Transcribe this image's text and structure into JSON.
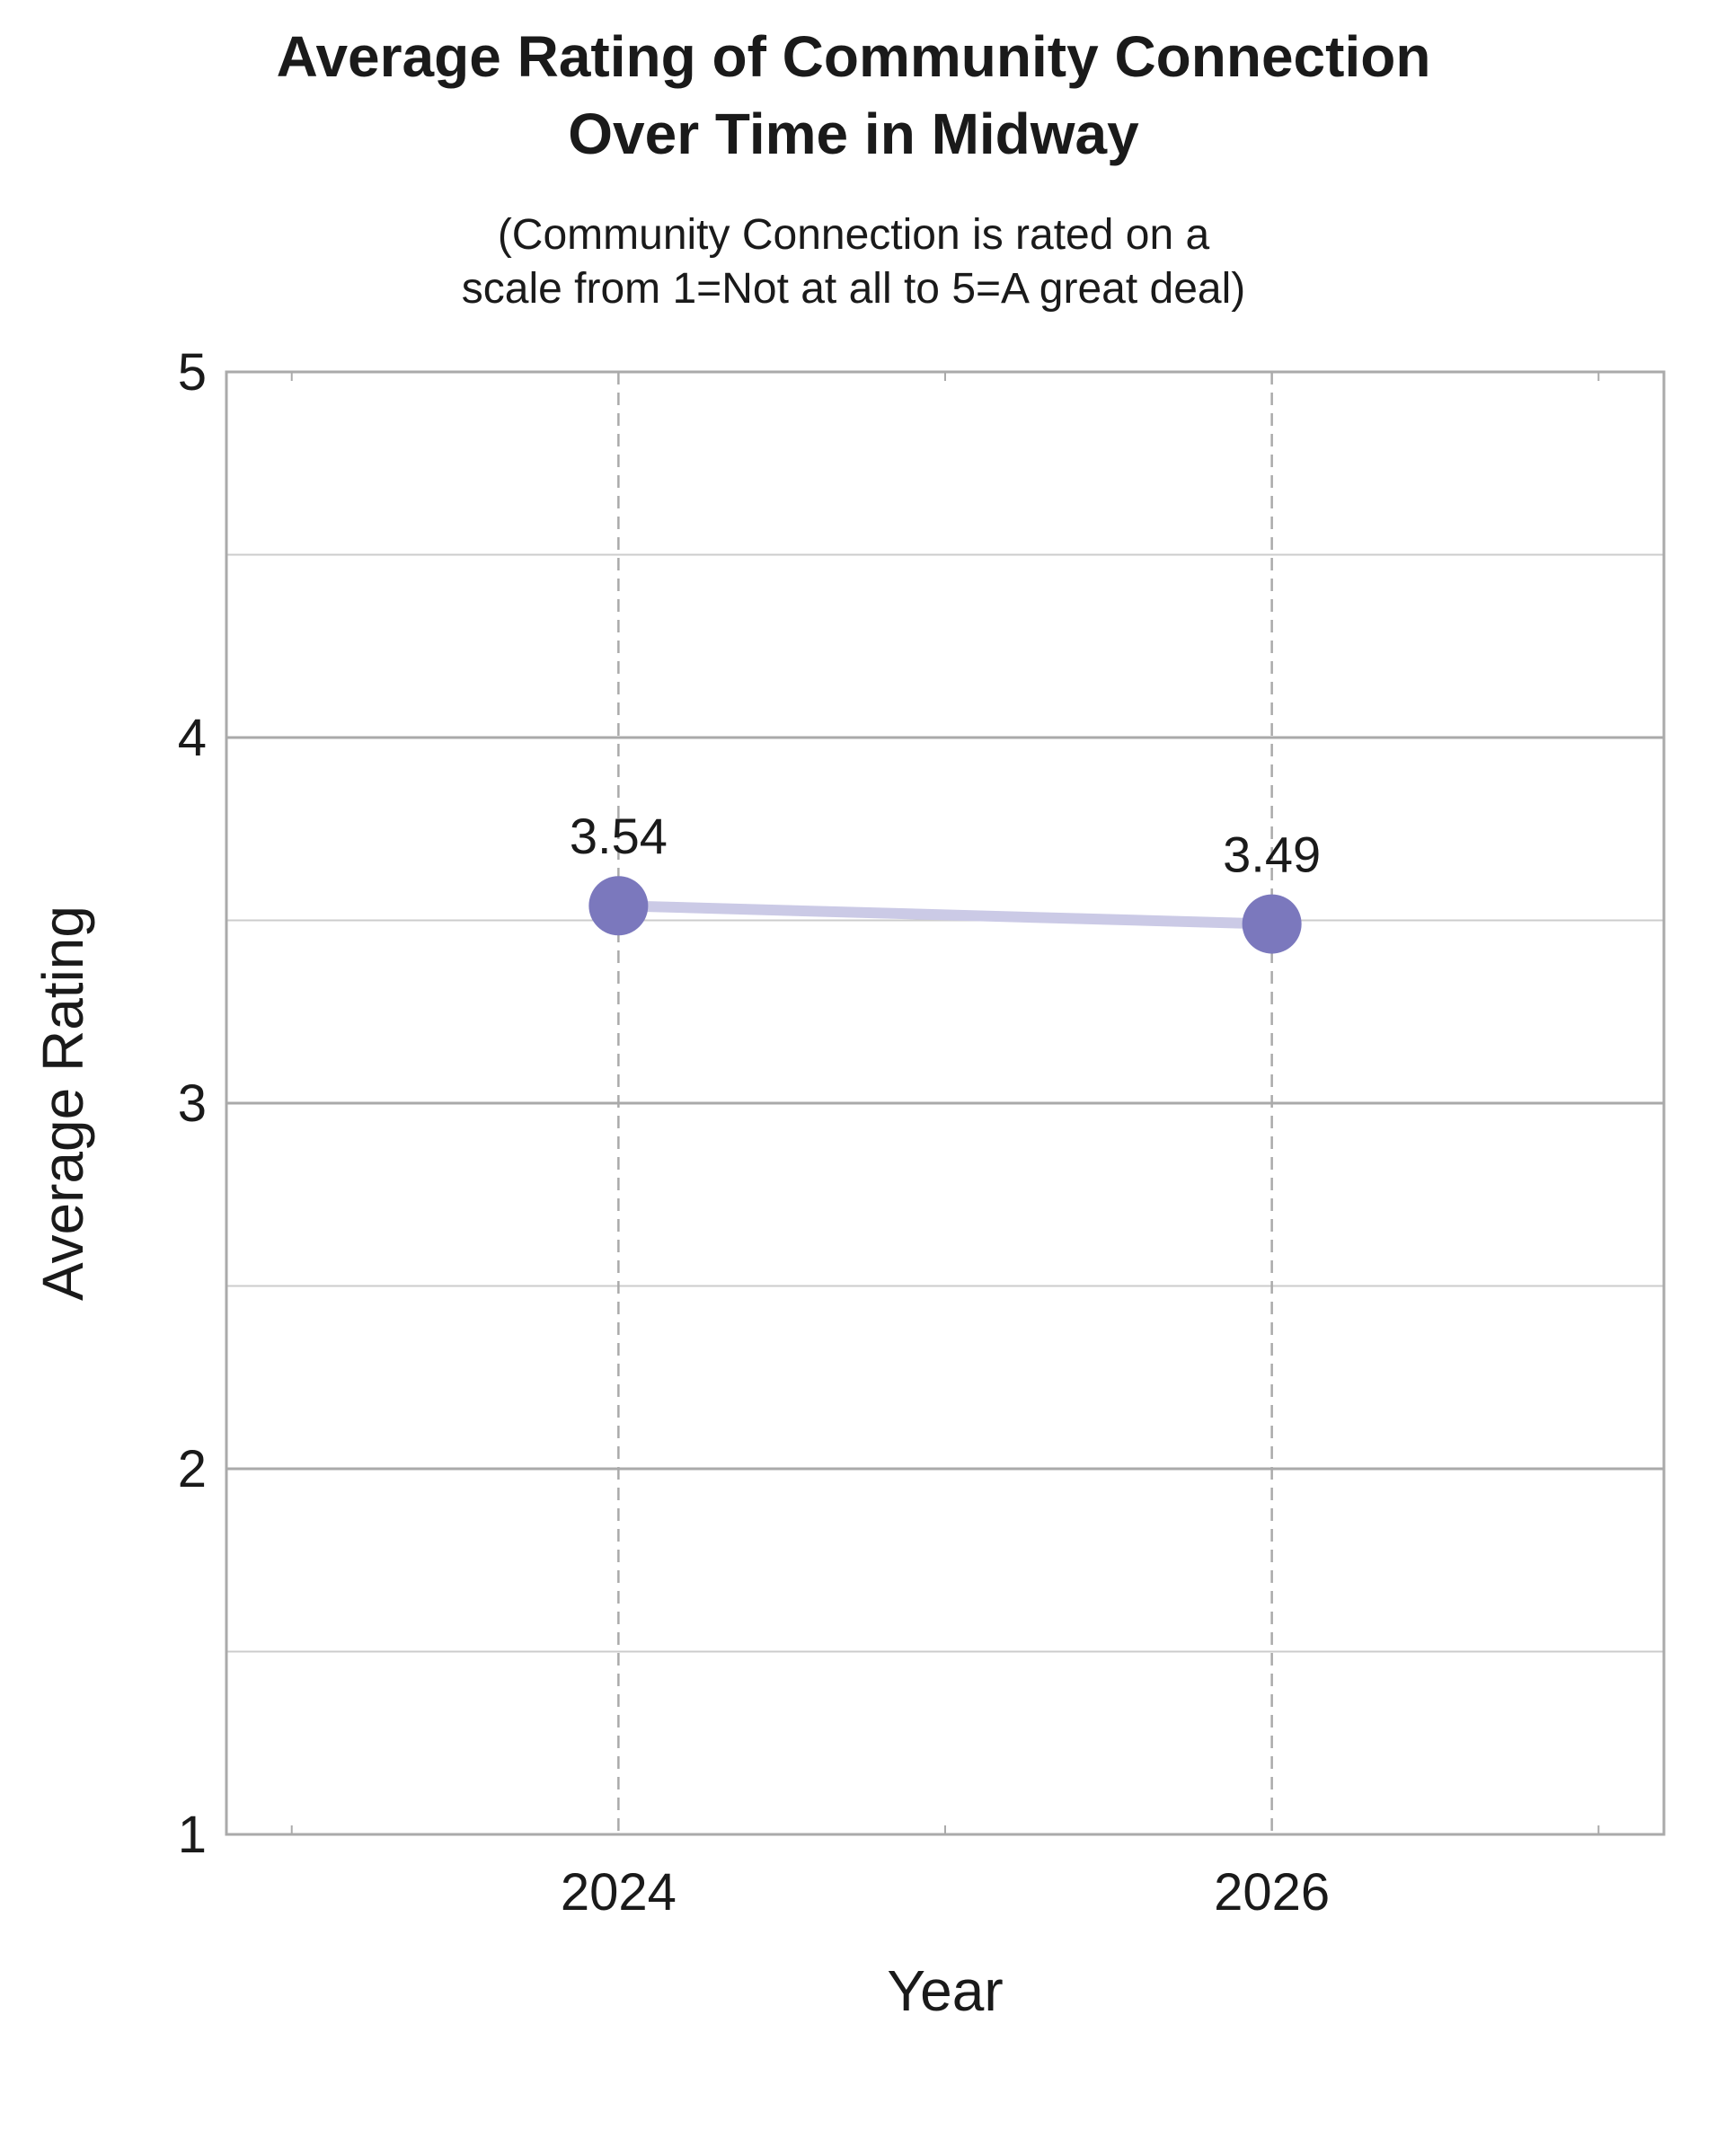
{
  "chart_data": {
    "type": "line",
    "title_lines": [
      "Average Rating of Community Connection",
      "Over Time in Midway"
    ],
    "subtitle_lines": [
      "(Community Connection is rated on a",
      "scale from 1=Not at all to 5=A great deal)"
    ],
    "xlabel": "Year",
    "ylabel": "Average Rating",
    "x": [
      2024,
      2026
    ],
    "x_tick_labels": [
      "2024",
      "2026"
    ],
    "xlim": [
      2022.8,
      2027.2
    ],
    "ylim": [
      1,
      5
    ],
    "y_ticks": [
      1,
      2,
      3,
      4,
      5
    ],
    "y_tick_labels": [
      "1",
      "2",
      "3",
      "4",
      "5"
    ],
    "y_minor_ticks": [
      1.5,
      2.5,
      3.5,
      4.5
    ],
    "x_minor_ticks": [
      2023,
      2025,
      2027
    ],
    "grid": true,
    "series": [
      {
        "values": [
          3.54,
          3.49
        ],
        "data_labels": [
          "3.54",
          "3.49"
        ],
        "marker_color": "#7B78BD",
        "line_color": "#CBCAE6"
      }
    ],
    "colors": {
      "frame": "#AAAAAA",
      "major_grid": "#AAAAAA",
      "minor_grid": "#CCCCCC",
      "x_grid": "#AAAAAA"
    }
  }
}
